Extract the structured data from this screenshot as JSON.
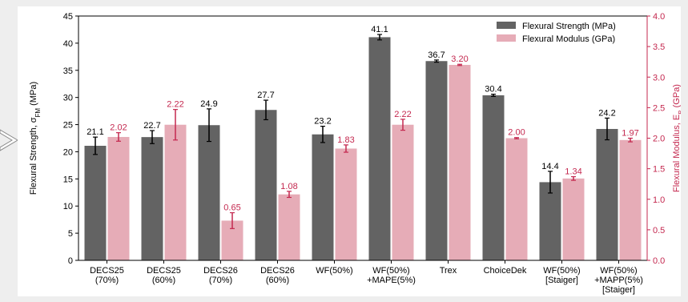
{
  "chart_data": {
    "type": "bar",
    "categories": [
      [
        "DECS25",
        "(70%)"
      ],
      [
        "DECS25",
        "(60%)"
      ],
      [
        "DECS26",
        "(70%)"
      ],
      [
        "DECS26",
        "(60%)"
      ],
      [
        "WF(50%)"
      ],
      [
        "WF(50%)",
        "+MAPE(5%)"
      ],
      [
        "Trex"
      ],
      [
        "ChoiceDek"
      ],
      [
        "WF(50%)",
        "[Staiger]"
      ],
      [
        "WF(50%)",
        "+MAPP(5%)",
        "[Staiger]"
      ]
    ],
    "series": [
      {
        "name": "Flexural Strength (MPa)",
        "axis": "left",
        "color": "#636363",
        "values": [
          21.1,
          22.7,
          24.9,
          27.7,
          23.2,
          41.1,
          36.7,
          30.4,
          14.4,
          24.2
        ],
        "labels": [
          "21.1",
          "22.7",
          "24.9",
          "27.7",
          "23.2",
          "41.1",
          "36.7",
          "30.4",
          "14.4",
          "24.2"
        ],
        "errors": [
          1.6,
          1.2,
          3.0,
          1.8,
          1.5,
          0.5,
          0.2,
          0.2,
          2.0,
          2.0
        ],
        "label_color": "#000000"
      },
      {
        "name": "Flexural Modulus (GPa)",
        "axis": "right",
        "color": "#e6acb7",
        "values": [
          2.02,
          2.22,
          0.65,
          1.08,
          1.83,
          2.22,
          3.2,
          2.0,
          1.34,
          1.97
        ],
        "labels": [
          "2.02",
          "2.22",
          "0.65",
          "1.08",
          "1.83",
          "2.22",
          "3.20",
          "2.00",
          "1.34",
          "1.97"
        ],
        "errors": [
          0.07,
          0.25,
          0.13,
          0.05,
          0.06,
          0.09,
          0.01,
          0.01,
          0.03,
          0.03
        ],
        "label_color": "#c4284f"
      }
    ],
    "y_left": {
      "label_parts": [
        "Flexural Strength, σ",
        "FM",
        " (MPa)"
      ],
      "lim": [
        0,
        45
      ],
      "ticks": [
        0,
        5,
        10,
        15,
        20,
        25,
        30,
        35,
        40,
        45
      ]
    },
    "y_right": {
      "label_parts": [
        "Flexural Modulus, E",
        "B",
        " (GPa)"
      ],
      "lim": [
        0,
        4.0
      ],
      "ticks": [
        "0.0",
        "0.5",
        "1.0",
        "1.5",
        "2.0",
        "2.5",
        "3.0",
        "3.5",
        "4.0"
      ],
      "color": "#c4284f"
    },
    "legend": {
      "placement": "top-right",
      "entries": [
        "Flexural Strength (MPa)",
        "Flexural Modulus (GPa)"
      ]
    },
    "grid": false
  }
}
